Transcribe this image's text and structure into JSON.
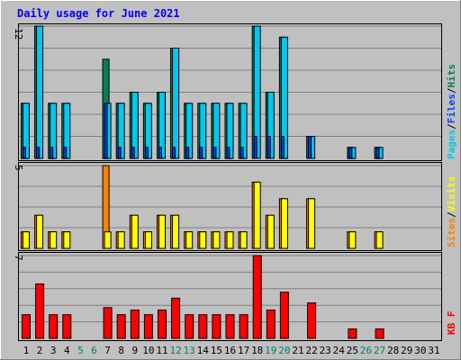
{
  "title": "Daily usage for June 2021",
  "colors": {
    "background": "#c0c0c0",
    "title": "#0000ff",
    "hits": "#00805c",
    "files": "#0040ff",
    "pages": "#00c8f0",
    "visits": "#ffff00",
    "sites": "#ff8000",
    "kbytes": "#ff0000",
    "weekend_day": "#00805c",
    "weekday": "#000000"
  },
  "chart_data": [
    {
      "type": "bar",
      "panel": "hits",
      "legend": [
        "Pages",
        "/",
        "Files",
        "/",
        "Hits"
      ],
      "ymax_label": "12",
      "ylim": [
        0,
        12
      ],
      "categories": [
        "1",
        "2",
        "3",
        "4",
        "5",
        "6",
        "7",
        "8",
        "9",
        "10",
        "11",
        "12",
        "13",
        "14",
        "15",
        "16",
        "17",
        "18",
        "19",
        "20",
        "21",
        "22",
        "23",
        "24",
        "25",
        "26",
        "27",
        "28",
        "29",
        "30",
        "31"
      ],
      "series": [
        {
          "name": "Hits",
          "values": [
            5,
            12,
            5,
            5,
            0,
            0,
            9,
            5,
            6,
            5,
            6,
            10,
            5,
            5,
            5,
            5,
            5,
            12,
            6,
            11,
            0,
            2,
            0,
            0,
            1,
            0,
            1,
            0,
            0,
            0,
            0
          ]
        },
        {
          "name": "Files",
          "values": [
            1,
            1,
            1,
            1,
            0,
            0,
            5,
            1,
            1,
            1,
            1,
            1,
            1,
            1,
            1,
            1,
            1,
            2,
            2,
            2,
            0,
            2,
            0,
            0,
            1,
            0,
            1,
            0,
            0,
            0,
            0
          ]
        },
        {
          "name": "Pages",
          "values": [
            5,
            12,
            5,
            5,
            0,
            0,
            5,
            5,
            6,
            5,
            6,
            10,
            5,
            5,
            5,
            5,
            5,
            12,
            6,
            11,
            0,
            2,
            0,
            0,
            1,
            0,
            1,
            0,
            0,
            0,
            0
          ]
        }
      ]
    },
    {
      "type": "bar",
      "panel": "visits",
      "legend": [
        "Sites",
        "/",
        "Visits"
      ],
      "ymax_label": "5",
      "ylim": [
        0,
        5
      ],
      "categories": [
        "1",
        "2",
        "3",
        "4",
        "5",
        "6",
        "7",
        "8",
        "9",
        "10",
        "11",
        "12",
        "13",
        "14",
        "15",
        "16",
        "17",
        "18",
        "19",
        "20",
        "21",
        "22",
        "23",
        "24",
        "25",
        "26",
        "27",
        "28",
        "29",
        "30",
        "31"
      ],
      "series": [
        {
          "name": "Sites",
          "values": [
            1,
            2,
            1,
            1,
            0,
            0,
            5,
            1,
            2,
            1,
            2,
            2,
            1,
            1,
            1,
            1,
            1,
            4,
            2,
            3,
            0,
            3,
            0,
            0,
            1,
            0,
            1,
            0,
            0,
            0,
            0
          ]
        },
        {
          "name": "Visits",
          "values": [
            1,
            2,
            1,
            1,
            0,
            0,
            1,
            1,
            2,
            1,
            2,
            2,
            1,
            1,
            1,
            1,
            1,
            4,
            2,
            3,
            0,
            3,
            0,
            0,
            1,
            0,
            1,
            0,
            0,
            0,
            0
          ]
        }
      ]
    },
    {
      "type": "bar",
      "panel": "kbytes",
      "legend": [
        "KB F"
      ],
      "ymax_label": "7",
      "ylim": [
        0,
        7
      ],
      "categories": [
        "1",
        "2",
        "3",
        "4",
        "5",
        "6",
        "7",
        "8",
        "9",
        "10",
        "11",
        "12",
        "13",
        "14",
        "15",
        "16",
        "17",
        "18",
        "19",
        "20",
        "21",
        "22",
        "23",
        "24",
        "25",
        "26",
        "27",
        "28",
        "29",
        "30",
        "31"
      ],
      "series": [
        {
          "name": "KB F",
          "values": [
            2,
            4.6,
            2,
            2,
            0,
            0,
            2.6,
            2,
            2.4,
            2,
            2.4,
            3.4,
            2,
            2,
            2,
            2,
            2,
            7,
            2.4,
            3.9,
            0,
            3,
            0,
            0,
            0.8,
            0,
            0.8,
            0,
            0,
            0,
            0
          ]
        }
      ]
    }
  ],
  "weekend_days": [
    5,
    6,
    12,
    13,
    19,
    20,
    26,
    27
  ]
}
